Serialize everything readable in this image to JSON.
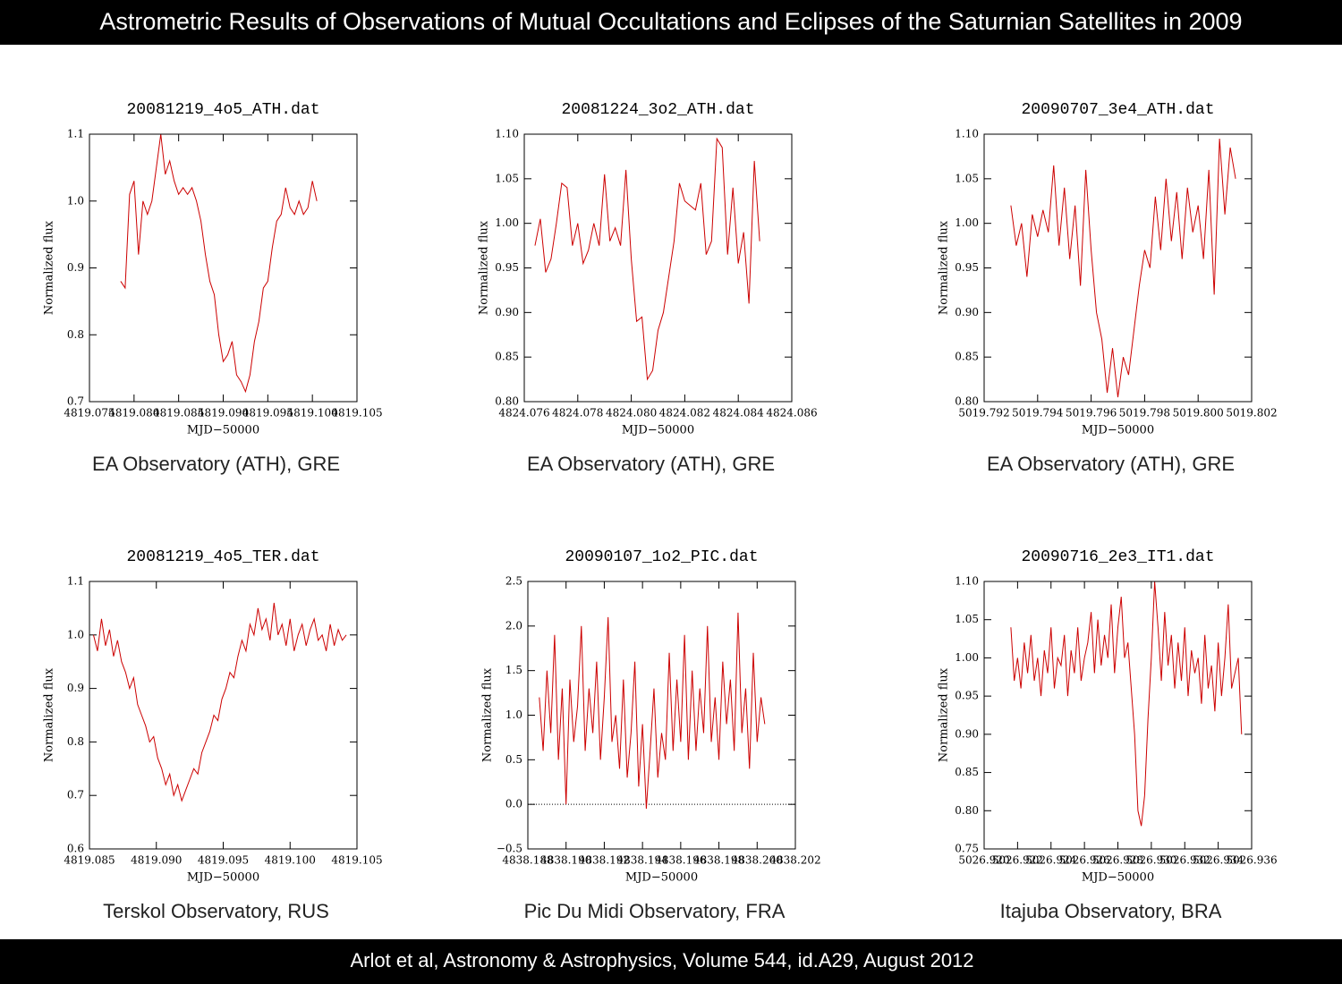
{
  "header": {
    "title": "Astrometric Results of Observations of Mutual Occultations and Eclipses of the Saturnian Satellites in 2009"
  },
  "footer": {
    "text": "Arlot et al, Astronomy & Astrophysics, Volume 544, id.A29, August 2012"
  },
  "chart_data": [
    {
      "type": "line",
      "title": "20081219_4o5_ATH.dat",
      "xlabel": "MJD−50000",
      "ylabel": "Normalized flux",
      "caption": "EA Observatory (ATH), GRE",
      "color": "#cc0000",
      "xlim": [
        4819.075,
        4819.105
      ],
      "xticks": [
        4819.075,
        {
          "value": 4819.08,
          "label": "4819.080"
        },
        4819.085,
        {
          "value": 4819.09,
          "label": "4819.090"
        },
        4819.095,
        {
          "value": 4819.1,
          "label": "4819.100"
        },
        4819.105
      ],
      "ylim": [
        0.7,
        1.1
      ],
      "yticks": [
        0.7,
        0.8,
        0.9,
        {
          "value": 1,
          "label": "1.0"
        },
        1.1
      ],
      "x": [
        4819.0785,
        4819.079,
        4819.0795,
        4819.08,
        4819.0805,
        4819.081,
        4819.0815,
        4819.082,
        4819.0825,
        4819.083,
        4819.0835,
        4819.084,
        4819.0845,
        4819.085,
        4819.0855,
        4819.086,
        4819.0865,
        4819.087,
        4819.0875,
        4819.088,
        4819.0885,
        4819.089,
        4819.0895,
        4819.09,
        4819.0905,
        4819.091,
        4819.0915,
        4819.092,
        4819.0925,
        4819.093,
        4819.0935,
        4819.094,
        4819.0945,
        4819.095,
        4819.0955,
        4819.096,
        4819.0965,
        4819.097,
        4819.0975,
        4819.098,
        4819.0985,
        4819.099,
        4819.0995,
        4819.1,
        4819.1005
      ],
      "values": [
        0.88,
        0.87,
        1.01,
        1.03,
        0.92,
        1.0,
        0.98,
        1.0,
        1.05,
        1.1,
        1.04,
        1.06,
        1.03,
        1.01,
        1.02,
        1.01,
        1.02,
        1.0,
        0.97,
        0.92,
        0.88,
        0.86,
        0.8,
        0.76,
        0.77,
        0.79,
        0.74,
        0.73,
        0.715,
        0.74,
        0.79,
        0.82,
        0.87,
        0.88,
        0.93,
        0.97,
        0.98,
        1.02,
        0.99,
        0.98,
        1.0,
        0.98,
        0.99,
        1.03,
        1.0
      ]
    },
    {
      "type": "line",
      "title": "20081224_3o2_ATH.dat",
      "xlabel": "MJD−50000",
      "ylabel": "Normalized flux",
      "caption": "EA Observatory (ATH), GRE",
      "color": "#cc0000",
      "xlim": [
        4824.076,
        4824.086
      ],
      "xticks": [
        4824.076,
        4824.078,
        {
          "value": 4824.08,
          "label": "4824.080"
        },
        4824.082,
        4824.084,
        4824.086
      ],
      "ylim": [
        0.8,
        1.1
      ],
      "yticks": [
        {
          "value": 0.8,
          "label": "0.80"
        },
        0.85,
        {
          "value": 0.9,
          "label": "0.90"
        },
        0.95,
        {
          "value": 1,
          "label": "1.00"
        },
        1.05,
        {
          "value": 1.1,
          "label": "1.10"
        }
      ],
      "x": [
        4824.0764,
        4824.0766,
        4824.0768,
        4824.077,
        4824.0772,
        4824.0774,
        4824.0776,
        4824.0778,
        4824.078,
        4824.0782,
        4824.0784,
        4824.0786,
        4824.0788,
        4824.079,
        4824.0792,
        4824.0794,
        4824.0796,
        4824.0798,
        4824.08,
        4824.0802,
        4824.0804,
        4824.0806,
        4824.0808,
        4824.081,
        4824.0812,
        4824.0814,
        4824.0816,
        4824.0818,
        4824.082,
        4824.0822,
        4824.0824,
        4824.0826,
        4824.0828,
        4824.083,
        4824.0832,
        4824.0834,
        4824.0836,
        4824.0838,
        4824.084,
        4824.0842,
        4824.0844,
        4824.0846,
        4824.0848
      ],
      "values": [
        0.975,
        1.005,
        0.945,
        0.96,
        1.0,
        1.045,
        1.04,
        0.975,
        1.0,
        0.955,
        0.97,
        1.0,
        0.975,
        1.055,
        0.98,
        0.995,
        0.975,
        1.06,
        0.96,
        0.89,
        0.895,
        0.825,
        0.835,
        0.88,
        0.9,
        0.94,
        0.98,
        1.045,
        1.025,
        1.02,
        1.015,
        1.045,
        0.965,
        0.98,
        1.095,
        1.085,
        0.965,
        1.04,
        0.955,
        0.99,
        0.91,
        1.07,
        0.98
      ]
    },
    {
      "type": "line",
      "title": "20090707_3e4_ATH.dat",
      "xlabel": "MJD−50000",
      "ylabel": "Normalized flux",
      "caption": "EA Observatory (ATH), GRE",
      "color": "#cc0000",
      "xlim": [
        5019.792,
        5019.802
      ],
      "xticks": [
        5019.792,
        5019.794,
        5019.796,
        5019.798,
        {
          "value": 5019.8,
          "label": "5019.800"
        },
        5019.802
      ],
      "ylim": [
        0.8,
        1.1
      ],
      "yticks": [
        {
          "value": 0.8,
          "label": "0.80"
        },
        0.85,
        {
          "value": 0.9,
          "label": "0.90"
        },
        0.95,
        {
          "value": 1,
          "label": "1.00"
        },
        1.05,
        {
          "value": 1.1,
          "label": "1.10"
        }
      ],
      "x": [
        5019.793,
        5019.7932,
        5019.7934,
        5019.7936,
        5019.7938,
        5019.794,
        5019.7942,
        5019.7944,
        5019.7946,
        5019.7948,
        5019.795,
        5019.7952,
        5019.7954,
        5019.7956,
        5019.7958,
        5019.796,
        5019.7962,
        5019.7964,
        5019.7966,
        5019.7968,
        5019.797,
        5019.7972,
        5019.7974,
        5019.7976,
        5019.7978,
        5019.798,
        5019.7982,
        5019.7984,
        5019.7986,
        5019.7988,
        5019.799,
        5019.7992,
        5019.7994,
        5019.7996,
        5019.7998,
        5019.8,
        5019.8002,
        5019.8004,
        5019.8006,
        5019.8008,
        5019.801,
        5019.8012,
        5019.8014
      ],
      "values": [
        1.02,
        0.975,
        1.0,
        0.94,
        1.01,
        0.985,
        1.015,
        0.99,
        1.065,
        0.975,
        1.04,
        0.96,
        1.02,
        0.93,
        1.06,
        0.97,
        0.9,
        0.87,
        0.81,
        0.86,
        0.805,
        0.85,
        0.83,
        0.88,
        0.93,
        0.97,
        0.95,
        1.03,
        0.97,
        1.05,
        0.98,
        1.035,
        0.96,
        1.04,
        0.99,
        1.02,
        0.96,
        1.06,
        0.92,
        1.095,
        1.01,
        1.085,
        1.05
      ]
    },
    {
      "type": "line",
      "title": "20081219_4o5_TER.dat",
      "xlabel": "MJD−50000",
      "ylabel": "Normalized flux",
      "caption": "Terskol Observatory, RUS",
      "color": "#cc0000",
      "xlim": [
        4819.085,
        4819.105
      ],
      "xticks": [
        4819.085,
        {
          "value": 4819.09,
          "label": "4819.090"
        },
        4819.095,
        {
          "value": 4819.1,
          "label": "4819.100"
        },
        4819.105
      ],
      "ylim": [
        0.6,
        1.1
      ],
      "yticks": [
        0.6,
        0.7,
        0.8,
        0.9,
        {
          "value": 1,
          "label": "1.0"
        },
        1.1
      ],
      "x": [
        4819.0853,
        4819.0856,
        4819.0859,
        4819.0862,
        4819.0865,
        4819.0868,
        4819.0871,
        4819.0874,
        4819.0877,
        4819.088,
        4819.0883,
        4819.0886,
        4819.0889,
        4819.0892,
        4819.0895,
        4819.0898,
        4819.0901,
        4819.0904,
        4819.0907,
        4819.091,
        4819.0913,
        4819.0916,
        4819.0919,
        4819.0922,
        4819.0925,
        4819.0928,
        4819.0931,
        4819.0934,
        4819.0937,
        4819.094,
        4819.0943,
        4819.0946,
        4819.0949,
        4819.0952,
        4819.0955,
        4819.0958,
        4819.0961,
        4819.0964,
        4819.0967,
        4819.097,
        4819.0973,
        4819.0976,
        4819.0979,
        4819.0982,
        4819.0985,
        4819.0988,
        4819.0991,
        4819.0994,
        4819.0997,
        4819.1,
        4819.1003,
        4819.1006,
        4819.1009,
        4819.1012,
        4819.1015,
        4819.1018,
        4819.1021,
        4819.1024,
        4819.1027,
        4819.103,
        4819.1033,
        4819.1036,
        4819.1039,
        4819.1042
      ],
      "values": [
        1.0,
        0.97,
        1.03,
        0.98,
        1.01,
        0.96,
        0.99,
        0.95,
        0.93,
        0.9,
        0.92,
        0.87,
        0.85,
        0.83,
        0.8,
        0.81,
        0.77,
        0.75,
        0.72,
        0.74,
        0.7,
        0.72,
        0.69,
        0.71,
        0.73,
        0.75,
        0.74,
        0.78,
        0.8,
        0.82,
        0.85,
        0.84,
        0.88,
        0.9,
        0.93,
        0.92,
        0.96,
        0.99,
        0.97,
        1.02,
        1.0,
        1.05,
        1.01,
        1.03,
        0.99,
        1.06,
        1.0,
        1.02,
        0.98,
        1.03,
        0.97,
        1.0,
        1.02,
        0.98,
        1.01,
        1.03,
        0.99,
        1.0,
        0.97,
        1.02,
        0.98,
        1.01,
        0.99,
        1.0
      ]
    },
    {
      "type": "line",
      "title": "20090107_1o2_PIC.dat",
      "xlabel": "MJD−50000",
      "ylabel": "Normalized flux",
      "caption": "Pic Du Midi Observatory, FRA",
      "color": "#cc0000",
      "zero_line": true,
      "xlim": [
        4838.188,
        4838.202
      ],
      "xticks": [
        4838.188,
        {
          "value": 4838.19,
          "label": "4838.190"
        },
        4838.192,
        4838.194,
        4838.196,
        4838.198,
        {
          "value": 4838.2,
          "label": "4838.200"
        },
        4838.202
      ],
      "ylim": [
        -0.5,
        2.5
      ],
      "yticks": [
        {
          "value": -0.5,
          "label": "−0.5"
        },
        {
          "value": 0,
          "label": "0.0"
        },
        0.5,
        {
          "value": 1,
          "label": "1.0"
        },
        1.5,
        {
          "value": 2,
          "label": "2.0"
        },
        2.5
      ],
      "x": [
        4838.1886,
        4838.1888,
        4838.189,
        4838.1892,
        4838.1894,
        4838.1896,
        4838.1898,
        4838.19,
        4838.1902,
        4838.1904,
        4838.1906,
        4838.1908,
        4838.191,
        4838.1912,
        4838.1914,
        4838.1916,
        4838.1918,
        4838.192,
        4838.1922,
        4838.1924,
        4838.1926,
        4838.1928,
        4838.193,
        4838.1932,
        4838.1934,
        4838.1936,
        4838.1938,
        4838.194,
        4838.1942,
        4838.1944,
        4838.1946,
        4838.1948,
        4838.195,
        4838.1952,
        4838.1954,
        4838.1956,
        4838.1958,
        4838.196,
        4838.1962,
        4838.1964,
        4838.1966,
        4838.1968,
        4838.197,
        4838.1972,
        4838.1974,
        4838.1976,
        4838.1978,
        4838.198,
        4838.1982,
        4838.1984,
        4838.1986,
        4838.1988,
        4838.199,
        4838.1992,
        4838.1994,
        4838.1996,
        4838.1998,
        4838.2,
        4838.2002,
        4838.2004
      ],
      "values": [
        1.2,
        0.6,
        1.5,
        0.8,
        1.9,
        0.5,
        1.3,
        0.0,
        1.4,
        0.7,
        1.1,
        2.0,
        0.6,
        1.3,
        0.8,
        1.6,
        0.5,
        1.2,
        2.1,
        0.7,
        1.0,
        0.4,
        1.4,
        0.3,
        0.8,
        1.6,
        0.2,
        0.9,
        -0.05,
        0.6,
        1.3,
        0.3,
        0.8,
        0.5,
        1.7,
        0.6,
        1.4,
        0.7,
        1.9,
        0.5,
        1.5,
        0.6,
        1.3,
        0.8,
        2.0,
        0.7,
        1.2,
        0.5,
        1.6,
        0.9,
        1.4,
        0.6,
        2.15,
        0.8,
        1.3,
        0.4,
        1.7,
        0.7,
        1.2,
        0.9
      ]
    },
    {
      "type": "line",
      "title": "20090716_2e3_IT1.dat",
      "xlabel": "MJD−50000",
      "ylabel": "Normalized flux",
      "caption": "Itajuba Observatory, BRA",
      "color": "#cc0000",
      "xlim": [
        5026.92,
        5026.936
      ],
      "xticks": [
        {
          "value": 5026.92,
          "label": "5026.920"
        },
        5026.922,
        5026.924,
        5026.926,
        5026.928,
        {
          "value": 5026.93,
          "label": "5026.930"
        },
        5026.932,
        5026.934,
        5026.936
      ],
      "ylim": [
        0.75,
        1.1
      ],
      "yticks": [
        0.75,
        {
          "value": 0.8,
          "label": "0.80"
        },
        0.85,
        {
          "value": 0.9,
          "label": "0.90"
        },
        0.95,
        {
          "value": 1,
          "label": "1.00"
        },
        1.05,
        {
          "value": 1.1,
          "label": "1.10"
        }
      ],
      "x": [
        5026.9216,
        5026.9218,
        5026.922,
        5026.9222,
        5026.9224,
        5026.9226,
        5026.9228,
        5026.923,
        5026.9232,
        5026.9234,
        5026.9236,
        5026.9238,
        5026.924,
        5026.9242,
        5026.9244,
        5026.9246,
        5026.9248,
        5026.925,
        5026.9252,
        5026.9254,
        5026.9256,
        5026.9258,
        5026.926,
        5026.9262,
        5026.9264,
        5026.9266,
        5026.9268,
        5026.927,
        5026.9272,
        5026.9274,
        5026.9276,
        5026.9278,
        5026.928,
        5026.9282,
        5026.9284,
        5026.9286,
        5026.9288,
        5026.929,
        5026.9292,
        5026.9294,
        5026.9296,
        5026.9298,
        5026.93,
        5026.9302,
        5026.9304,
        5026.9306,
        5026.9308,
        5026.931,
        5026.9312,
        5026.9314,
        5026.9316,
        5026.9318,
        5026.932,
        5026.9322,
        5026.9324,
        5026.9326,
        5026.9328,
        5026.933,
        5026.9332,
        5026.9334,
        5026.9336,
        5026.9338,
        5026.934,
        5026.9342,
        5026.9344,
        5026.9346,
        5026.9348,
        5026.935,
        5026.9352,
        5026.9354
      ],
      "values": [
        1.04,
        0.97,
        1.0,
        0.96,
        1.02,
        0.98,
        1.03,
        0.97,
        1.0,
        0.95,
        1.01,
        0.98,
        1.04,
        0.96,
        1.0,
        0.99,
        1.03,
        0.95,
        1.01,
        0.98,
        1.04,
        0.97,
        1.0,
        1.02,
        1.06,
        0.98,
        1.05,
        0.99,
        1.03,
        1.0,
        1.07,
        0.98,
        1.04,
        1.08,
        1.0,
        1.02,
        0.96,
        0.9,
        0.8,
        0.78,
        0.82,
        0.92,
        1.0,
        1.1,
        1.04,
        0.97,
        1.06,
        0.99,
        1.03,
        0.96,
        1.02,
        0.97,
        1.04,
        0.95,
        1.01,
        0.98,
        1.0,
        0.94,
        1.03,
        0.96,
        0.99,
        0.93,
        1.02,
        0.95,
        1.0,
        1.07,
        0.96,
        0.98,
        1.0,
        0.9
      ]
    }
  ]
}
